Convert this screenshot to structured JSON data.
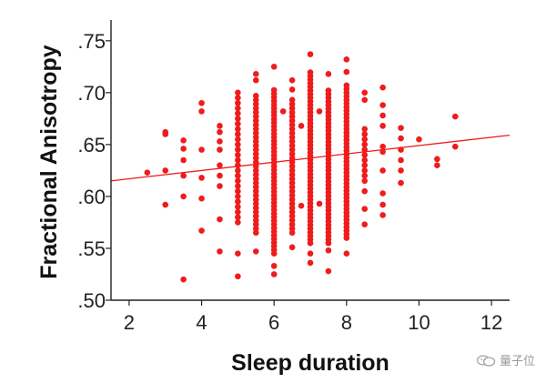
{
  "watermark": {
    "text": "量子位",
    "icon": "wechat-logo-icon"
  },
  "chart_data": {
    "type": "scatter",
    "title": "",
    "xlabel": "Sleep duration",
    "ylabel": "Fractional Anisotropy",
    "xlim": [
      1.5,
      12.5
    ],
    "ylim": [
      0.5,
      0.77
    ],
    "x_ticks": [
      2,
      4,
      6,
      8,
      10,
      12
    ],
    "x_tick_labels": [
      "2",
      "4",
      "6",
      "8",
      "10",
      "12"
    ],
    "y_ticks": [
      0.5,
      0.55,
      0.6,
      0.65,
      0.7,
      0.75
    ],
    "y_tick_labels": [
      ".50",
      ".55",
      ".60",
      ".65",
      ".70",
      ".75"
    ],
    "grid": false,
    "point_color": "#ee1c1c",
    "line_color": "#ee1c1c",
    "regression_line": {
      "x": [
        1.5,
        12.5
      ],
      "y": [
        0.615,
        0.659
      ]
    },
    "isolated_points": [
      [
        2.5,
        0.623
      ],
      [
        3.0,
        0.662
      ],
      [
        3.0,
        0.66
      ],
      [
        3.0,
        0.625
      ],
      [
        3.0,
        0.592
      ],
      [
        3.5,
        0.654
      ],
      [
        3.5,
        0.646
      ],
      [
        3.5,
        0.635
      ],
      [
        3.5,
        0.62
      ],
      [
        3.5,
        0.6
      ],
      [
        3.5,
        0.52
      ],
      [
        4.0,
        0.69
      ],
      [
        4.0,
        0.682
      ],
      [
        4.0,
        0.645
      ],
      [
        4.0,
        0.618
      ],
      [
        4.0,
        0.598
      ],
      [
        4.0,
        0.567
      ],
      [
        4.5,
        0.668
      ],
      [
        4.5,
        0.662
      ],
      [
        4.5,
        0.653
      ],
      [
        4.5,
        0.645
      ],
      [
        4.5,
        0.63
      ],
      [
        4.5,
        0.62
      ],
      [
        4.5,
        0.61
      ],
      [
        4.5,
        0.578
      ],
      [
        4.5,
        0.547
      ],
      [
        5.0,
        0.523
      ],
      [
        5.0,
        0.545
      ],
      [
        5.5,
        0.718
      ],
      [
        5.5,
        0.712
      ],
      [
        5.5,
        0.547
      ],
      [
        6.0,
        0.725
      ],
      [
        6.0,
        0.525
      ],
      [
        6.0,
        0.533
      ],
      [
        6.5,
        0.712
      ],
      [
        6.5,
        0.703
      ],
      [
        6.5,
        0.551
      ],
      [
        6.25,
        0.682
      ],
      [
        6.75,
        0.668
      ],
      [
        6.75,
        0.591
      ],
      [
        7.0,
        0.737
      ],
      [
        7.0,
        0.545
      ],
      [
        7.0,
        0.536
      ],
      [
        7.25,
        0.682
      ],
      [
        7.25,
        0.593
      ],
      [
        7.5,
        0.718
      ],
      [
        7.5,
        0.548
      ],
      [
        7.5,
        0.528
      ],
      [
        8.0,
        0.732
      ],
      [
        8.0,
        0.72
      ],
      [
        8.0,
        0.545
      ],
      [
        8.5,
        0.7
      ],
      [
        8.5,
        0.693
      ],
      [
        8.5,
        0.605
      ],
      [
        8.5,
        0.588
      ],
      [
        8.5,
        0.573
      ],
      [
        9.0,
        0.705
      ],
      [
        9.0,
        0.688
      ],
      [
        9.0,
        0.678
      ],
      [
        9.0,
        0.668
      ],
      [
        9.0,
        0.648
      ],
      [
        9.0,
        0.643
      ],
      [
        9.0,
        0.625
      ],
      [
        9.0,
        0.603
      ],
      [
        9.0,
        0.592
      ],
      [
        9.0,
        0.582
      ],
      [
        9.5,
        0.666
      ],
      [
        9.5,
        0.656
      ],
      [
        9.5,
        0.645
      ],
      [
        9.5,
        0.635
      ],
      [
        9.5,
        0.625
      ],
      [
        9.5,
        0.613
      ],
      [
        10.0,
        0.655
      ],
      [
        10.5,
        0.636
      ],
      [
        10.5,
        0.63
      ],
      [
        11.0,
        0.677
      ],
      [
        11.0,
        0.648
      ]
    ],
    "point_columns": [
      {
        "x": 5.0,
        "ymin": 0.575,
        "ymax": 0.7,
        "step": 0.005
      },
      {
        "x": 5.5,
        "ymin": 0.565,
        "ymax": 0.7,
        "step": 0.004
      },
      {
        "x": 6.0,
        "ymin": 0.545,
        "ymax": 0.705,
        "step": 0.0035
      },
      {
        "x": 6.5,
        "ymin": 0.565,
        "ymax": 0.695,
        "step": 0.004
      },
      {
        "x": 7.0,
        "ymin": 0.555,
        "ymax": 0.72,
        "step": 0.0035
      },
      {
        "x": 7.5,
        "ymin": 0.555,
        "ymax": 0.705,
        "step": 0.0035
      },
      {
        "x": 8.0,
        "ymin": 0.56,
        "ymax": 0.71,
        "step": 0.0035
      },
      {
        "x": 8.5,
        "ymin": 0.615,
        "ymax": 0.665,
        "step": 0.005
      }
    ]
  }
}
